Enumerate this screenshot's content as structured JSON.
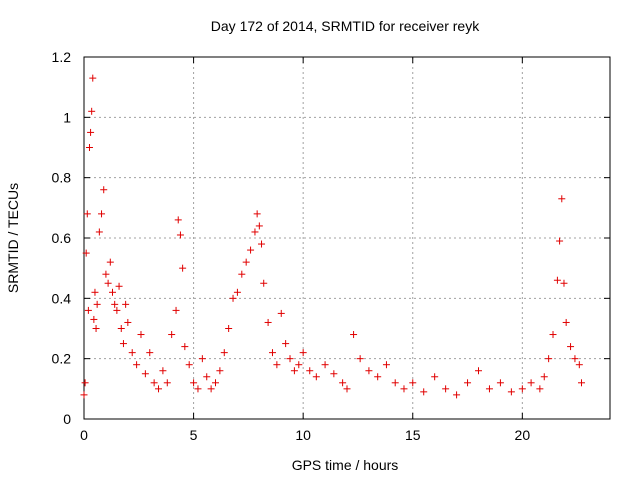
{
  "chart_data": {
    "type": "scatter",
    "title": "Day 172 of 2014, SRMTID for receiver reyk",
    "xlabel": "GPS time / hours",
    "ylabel": "SRMTID / TECUs",
    "xlim": [
      0,
      24
    ],
    "ylim": [
      0,
      1.2
    ],
    "xticks": [
      0,
      5,
      10,
      15,
      20
    ],
    "yticks": [
      0,
      0.2,
      0.4,
      0.6,
      0.8,
      1,
      1.2
    ],
    "xtick_labels": [
      "0",
      "5",
      "10",
      "15",
      "20"
    ],
    "ytick_labels": [
      "0",
      "0.2",
      "0.4",
      "0.6",
      "0.8",
      "1",
      "1.2"
    ],
    "grid": true,
    "legend": "none",
    "marker": "+",
    "color": "#e00000",
    "series": [
      {
        "name": "SRMTID",
        "x": [
          0.0,
          0.05,
          0.1,
          0.15,
          0.2,
          0.25,
          0.3,
          0.35,
          0.4,
          0.45,
          0.5,
          0.55,
          0.6,
          0.7,
          0.8,
          0.9,
          1.0,
          1.1,
          1.2,
          1.3,
          1.4,
          1.5,
          1.6,
          1.7,
          1.8,
          1.9,
          2.0,
          2.2,
          2.4,
          2.6,
          2.8,
          3.0,
          3.2,
          3.4,
          3.6,
          3.8,
          4.0,
          4.2,
          4.3,
          4.4,
          4.5,
          4.6,
          4.8,
          5.0,
          5.2,
          5.4,
          5.6,
          5.8,
          6.0,
          6.2,
          6.4,
          6.6,
          6.8,
          7.0,
          7.2,
          7.4,
          7.6,
          7.8,
          7.9,
          8.0,
          8.1,
          8.2,
          8.4,
          8.6,
          8.8,
          9.0,
          9.2,
          9.4,
          9.6,
          9.8,
          10.0,
          10.3,
          10.6,
          11.0,
          11.4,
          11.8,
          12.0,
          12.3,
          12.6,
          13.0,
          13.4,
          13.8,
          14.2,
          14.6,
          15.0,
          15.5,
          16.0,
          16.5,
          17.0,
          17.5,
          18.0,
          18.5,
          19.0,
          19.5,
          20.0,
          20.4,
          20.8,
          21.0,
          21.2,
          21.4,
          21.6,
          21.7,
          21.8,
          21.9,
          22.0,
          22.2,
          22.4,
          22.6,
          22.7
        ],
        "y": [
          0.08,
          0.12,
          0.55,
          0.68,
          0.36,
          0.9,
          0.95,
          1.02,
          1.13,
          0.33,
          0.42,
          0.3,
          0.38,
          0.62,
          0.68,
          0.76,
          0.48,
          0.45,
          0.52,
          0.42,
          0.38,
          0.36,
          0.44,
          0.3,
          0.25,
          0.38,
          0.32,
          0.22,
          0.18,
          0.28,
          0.15,
          0.22,
          0.12,
          0.1,
          0.16,
          0.12,
          0.28,
          0.36,
          0.66,
          0.61,
          0.5,
          0.24,
          0.18,
          0.12,
          0.1,
          0.2,
          0.14,
          0.1,
          0.12,
          0.16,
          0.22,
          0.3,
          0.4,
          0.42,
          0.48,
          0.52,
          0.56,
          0.62,
          0.68,
          0.64,
          0.58,
          0.45,
          0.32,
          0.22,
          0.18,
          0.35,
          0.25,
          0.2,
          0.16,
          0.18,
          0.22,
          0.16,
          0.14,
          0.18,
          0.15,
          0.12,
          0.1,
          0.28,
          0.2,
          0.16,
          0.14,
          0.18,
          0.12,
          0.1,
          0.12,
          0.09,
          0.14,
          0.1,
          0.08,
          0.12,
          0.16,
          0.1,
          0.12,
          0.09,
          0.1,
          0.12,
          0.1,
          0.14,
          0.2,
          0.28,
          0.46,
          0.59,
          0.73,
          0.45,
          0.32,
          0.24,
          0.2,
          0.18,
          0.12
        ]
      }
    ]
  }
}
